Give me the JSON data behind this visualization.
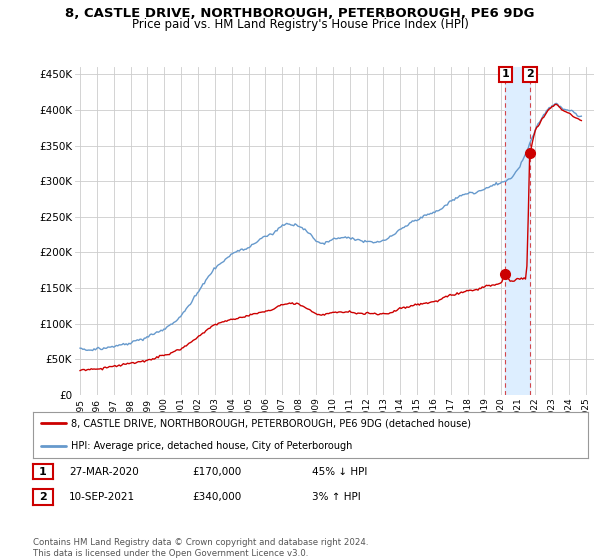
{
  "title_line1": "8, CASTLE DRIVE, NORTHBOROUGH, PETERBOROUGH, PE6 9DG",
  "title_line2": "Price paid vs. HM Land Registry's House Price Index (HPI)",
  "xlim_start": 1995.0,
  "xlim_end": 2025.5,
  "ylim_min": 0,
  "ylim_max": 460000,
  "yticks": [
    0,
    50000,
    100000,
    150000,
    200000,
    250000,
    300000,
    350000,
    400000,
    450000
  ],
  "ytick_labels": [
    "£0",
    "£50K",
    "£100K",
    "£150K",
    "£200K",
    "£250K",
    "£300K",
    "£350K",
    "£400K",
    "£450K"
  ],
  "xtick_years": [
    1995,
    1996,
    1997,
    1998,
    1999,
    2000,
    2001,
    2002,
    2003,
    2004,
    2005,
    2006,
    2007,
    2008,
    2009,
    2010,
    2011,
    2012,
    2013,
    2014,
    2015,
    2016,
    2017,
    2018,
    2019,
    2020,
    2021,
    2022,
    2023,
    2024,
    2025
  ],
  "hpi_color": "#6699cc",
  "price_color": "#cc0000",
  "sale1_x": 2020.23,
  "sale1_y": 170000,
  "sale1_label": "1",
  "sale2_x": 2021.7,
  "sale2_y": 340000,
  "sale2_label": "2",
  "legend_line1": "8, CASTLE DRIVE, NORTHBOROUGH, PETERBOROUGH, PE6 9DG (detached house)",
  "legend_line2": "HPI: Average price, detached house, City of Peterborough",
  "table_row1": [
    "1",
    "27-MAR-2020",
    "£170,000",
    "45% ↓ HPI"
  ],
  "table_row2": [
    "2",
    "10-SEP-2021",
    "£340,000",
    "3% ↑ HPI"
  ],
  "footnote": "Contains HM Land Registry data © Crown copyright and database right 2024.\nThis data is licensed under the Open Government Licence v3.0.",
  "bg_color": "#ffffff",
  "grid_color": "#cccccc",
  "shade_color": "#ddeeff"
}
